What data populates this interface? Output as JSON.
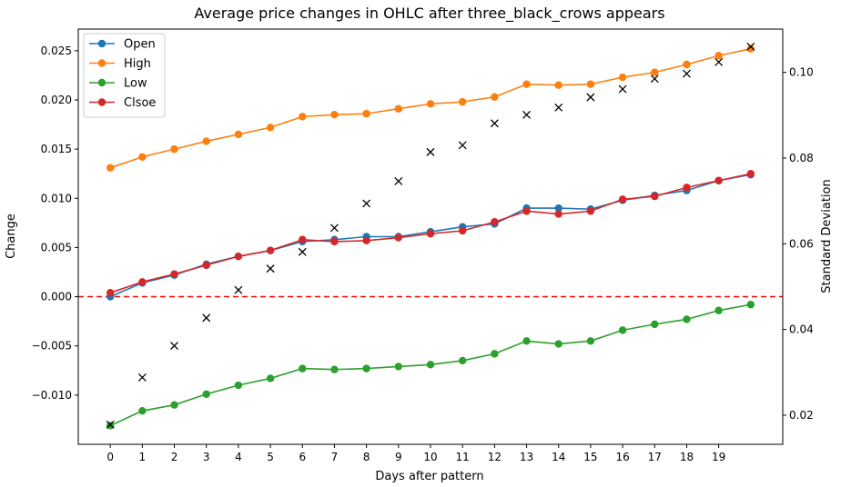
{
  "chart_data": {
    "type": "line",
    "title": "Average price changes in OHLC after three_black_crows appears",
    "xlabel": "Days after pattern",
    "ylabel": "Change",
    "y2label": "Standard Deviation",
    "x": [
      0,
      1,
      2,
      3,
      4,
      5,
      6,
      7,
      8,
      9,
      10,
      11,
      12,
      13,
      14,
      15,
      16,
      17,
      18,
      19,
      20
    ],
    "xticks": [
      0,
      1,
      2,
      3,
      4,
      5,
      6,
      7,
      8,
      9,
      10,
      11,
      12,
      13,
      14,
      15,
      16,
      17,
      18,
      19
    ],
    "xlim": [
      -1,
      21
    ],
    "ylim": [
      -0.015,
      0.0272
    ],
    "yticks": [
      -0.01,
      -0.005,
      0.0,
      0.005,
      0.01,
      0.015,
      0.02,
      0.025
    ],
    "y2lim": [
      0.0132,
      0.1101
    ],
    "y2ticks": [
      0.02,
      0.04,
      0.06,
      0.08,
      0.1
    ],
    "reference_line": {
      "y": 0.0,
      "color": "#ff0000",
      "style": "dashed"
    },
    "legend_position": "top-left",
    "series": [
      {
        "name": "Open",
        "color": "#1f77b4",
        "marker": "circle",
        "values": [
          0.0,
          0.0014,
          0.0022,
          0.0033,
          0.0041,
          0.0047,
          0.0056,
          0.0058,
          0.0061,
          0.0061,
          0.0066,
          0.0071,
          0.0074,
          0.009,
          0.009,
          0.0089,
          0.0098,
          0.0103,
          0.0108,
          0.0118,
          0.0124
        ]
      },
      {
        "name": "High",
        "color": "#ff7f0e",
        "marker": "circle",
        "values": [
          0.0131,
          0.0142,
          0.015,
          0.0158,
          0.0165,
          0.0172,
          0.0183,
          0.0185,
          0.0186,
          0.0191,
          0.0196,
          0.0198,
          0.0203,
          0.0216,
          0.0215,
          0.0216,
          0.0223,
          0.0228,
          0.0236,
          0.0245,
          0.0252
        ]
      },
      {
        "name": "Low",
        "color": "#2ca02c",
        "marker": "circle",
        "values": [
          -0.0131,
          -0.0116,
          -0.011,
          -0.0099,
          -0.009,
          -0.0083,
          -0.0073,
          -0.0074,
          -0.0073,
          -0.0071,
          -0.0069,
          -0.0065,
          -0.0058,
          -0.0045,
          -0.0048,
          -0.0045,
          -0.0034,
          -0.0028,
          -0.0023,
          -0.0014,
          -0.0008
        ]
      },
      {
        "name": "Clsoe",
        "color": "#d62728",
        "marker": "circle",
        "values": [
          0.0004,
          0.0015,
          0.0023,
          0.0032,
          0.0041,
          0.0047,
          0.0058,
          0.0056,
          0.0057,
          0.006,
          0.0064,
          0.0067,
          0.0076,
          0.0087,
          0.0084,
          0.0087,
          0.0099,
          0.0102,
          0.0111,
          0.0118,
          0.0125
        ]
      }
    ],
    "std_series": {
      "axis": "right",
      "marker": "x",
      "color": "#000000",
      "values": [
        0.0178,
        0.0288,
        0.0362,
        0.0427,
        0.0492,
        0.0542,
        0.0581,
        0.0637,
        0.0694,
        0.0746,
        0.0814,
        0.083,
        0.0881,
        0.0901,
        0.0918,
        0.0942,
        0.0961,
        0.0985,
        0.0997,
        0.1024,
        0.106
      ]
    }
  }
}
